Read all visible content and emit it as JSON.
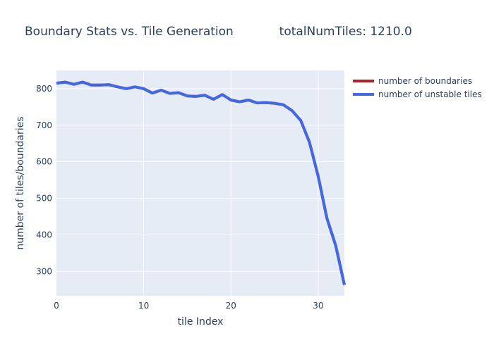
{
  "chart_data": {
    "type": "line",
    "title": "Boundary Stats vs. Tile Generation            totalNumTiles: 1210.0",
    "xlabel": "tile Index",
    "ylabel": "number of tiles/boundaries",
    "xlim": [
      0,
      33
    ],
    "ylim": [
      233,
      850
    ],
    "x_ticks": [
      0,
      10,
      20,
      30
    ],
    "y_ticks": [
      300,
      400,
      500,
      600,
      700,
      800
    ],
    "grid": true,
    "legend_position": "top-right",
    "series": [
      {
        "name": "number of boundaries",
        "color": "#b22222",
        "x": [
          0,
          1,
          2,
          3,
          4,
          5,
          6,
          7,
          8,
          9,
          10,
          11,
          12,
          13,
          14,
          15,
          16,
          17,
          18,
          19,
          20,
          21,
          22,
          23,
          24,
          25,
          26,
          27,
          28,
          29,
          30,
          31,
          32,
          33
        ],
        "values": [
          815,
          818,
          812,
          818,
          810,
          810,
          811,
          805,
          800,
          805,
          800,
          788,
          796,
          787,
          789,
          780,
          779,
          782,
          771,
          784,
          769,
          764,
          769,
          761,
          762,
          760,
          756,
          740,
          713,
          653,
          560,
          445,
          371,
          263
        ]
      },
      {
        "name": "number of unstable tiles",
        "color": "#4169e1",
        "x": [
          0,
          1,
          2,
          3,
          4,
          5,
          6,
          7,
          8,
          9,
          10,
          11,
          12,
          13,
          14,
          15,
          16,
          17,
          18,
          19,
          20,
          21,
          22,
          23,
          24,
          25,
          26,
          27,
          28,
          29,
          30,
          31,
          32,
          33
        ],
        "values": [
          815,
          818,
          812,
          818,
          810,
          810,
          811,
          805,
          800,
          805,
          800,
          788,
          796,
          787,
          789,
          780,
          779,
          782,
          771,
          784,
          769,
          764,
          769,
          761,
          762,
          760,
          756,
          740,
          713,
          653,
          560,
          445,
          371,
          263
        ]
      }
    ]
  }
}
